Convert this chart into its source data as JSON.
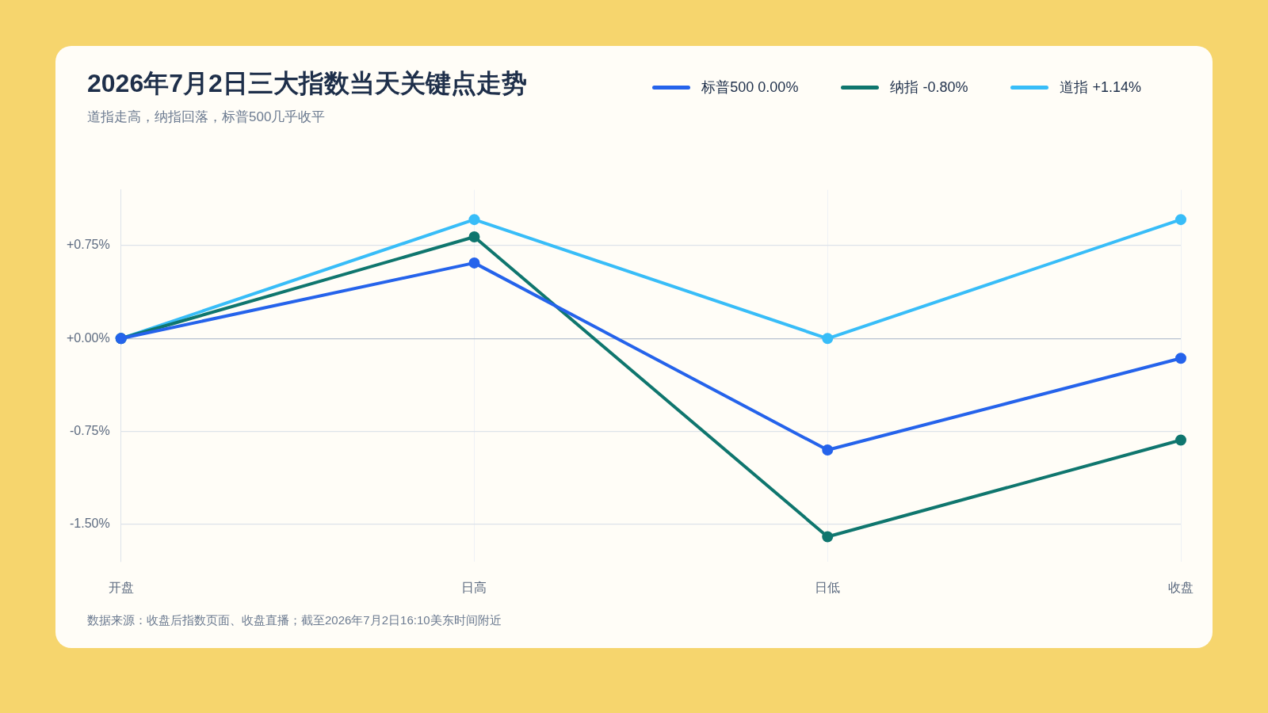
{
  "chart_data": {
    "type": "line",
    "title": "2026年7月2日三大指数当天关键点走势",
    "subtitle": "道指走高，纳指回落，标普500几乎收平",
    "categories": [
      "开盘",
      "日高",
      "日低",
      "收盘"
    ],
    "series": [
      {
        "name": "标普500 0.00%",
        "color": "#2563eb",
        "values": [
          0,
          0.61,
          -0.9,
          -0.16
        ]
      },
      {
        "name": "纳指 -0.80%",
        "color": "#0f766e",
        "values": [
          0,
          0.82,
          -1.6,
          -0.82
        ]
      },
      {
        "name": "道指 +1.14%",
        "color": "#38bdf8",
        "values": [
          0,
          0.96,
          0,
          0.96
        ]
      }
    ],
    "ylim": [
      -1.8,
      1.2
    ],
    "yticks": [
      {
        "value": -1.5,
        "label": "-1.50%"
      },
      {
        "value": -0.75,
        "label": "-0.75%"
      },
      {
        "value": 0,
        "label": "+0.00%"
      },
      {
        "value": 0.75,
        "label": "+0.75%"
      }
    ],
    "grid": true,
    "legend": "top right",
    "marker": "circle",
    "line_style": "solid",
    "annotations": [
      "数据来源：收盘后指数页面、收盘直播；截至2026年7月2日16:10美东时间附近"
    ]
  }
}
